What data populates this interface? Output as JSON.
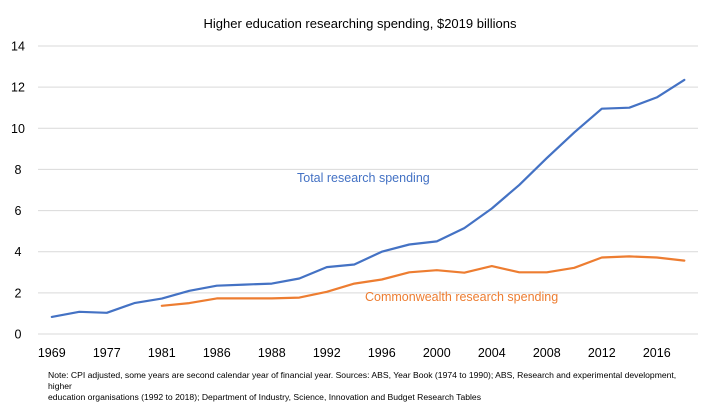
{
  "chart_data": {
    "type": "line",
    "title": "Higher education researching spending, $2019 billions",
    "xlabel": "",
    "ylabel": "",
    "ylim": [
      0,
      14
    ],
    "y_ticks": [
      "0",
      "2",
      "4",
      "6",
      "8",
      "10",
      "12",
      "14"
    ],
    "y_tick_values": [
      0,
      2,
      4,
      6,
      8,
      10,
      12,
      14
    ],
    "grid": true,
    "n_points": 24,
    "x_tick_labels": [
      "1969",
      "1977",
      "1981",
      "1986",
      "1988",
      "1992",
      "1996",
      "2000",
      "2004",
      "2008",
      "2012",
      "2016"
    ],
    "x_tick_label_every": 2,
    "series": [
      {
        "name": "Total research spending",
        "color": "#4472C4",
        "values": [
          0.83,
          1.08,
          1.03,
          1.5,
          1.72,
          2.1,
          2.35,
          2.4,
          2.45,
          2.7,
          3.25,
          3.38,
          4.0,
          4.35,
          4.5,
          5.15,
          6.1,
          7.25,
          8.55,
          9.8,
          10.95,
          11.0,
          11.5,
          12.35
        ]
      },
      {
        "name": "Commonwealth research spending",
        "color": "#ED7D31",
        "values": [
          null,
          null,
          null,
          null,
          1.37,
          1.5,
          1.73,
          1.73,
          1.73,
          1.77,
          2.05,
          2.45,
          2.65,
          3.0,
          3.1,
          2.98,
          3.3,
          3.0,
          3.0,
          3.22,
          3.72,
          3.77,
          3.72,
          3.57
        ]
      }
    ],
    "annotations": [
      "Total research spending",
      "Commonwealth research spending"
    ]
  },
  "footnote": {
    "line1": "Note: CPI adjusted, some years are second calendar year of financial year. Sources: ABS, Year Book (1974 to 1990); ABS, Research and experimental development, higher",
    "line2": "education organisations (1992 to 2018); Department of Industry, Science, Innovation and Budget Research Tables"
  }
}
